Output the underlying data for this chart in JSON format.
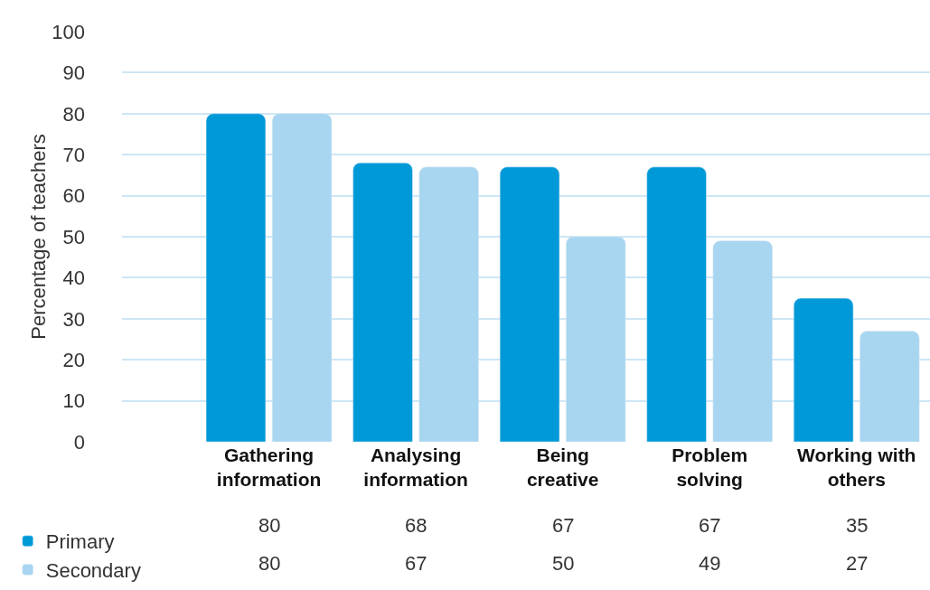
{
  "chart_data": {
    "type": "bar",
    "ylabel": "Percentage of teachers",
    "categories": [
      "Gathering information",
      "Analysing information",
      "Being creative",
      "Problem solving",
      "Working with others"
    ],
    "series": [
      {
        "name": "Primary",
        "color": "#0099d8",
        "values": [
          80,
          68,
          67,
          67,
          35
        ]
      },
      {
        "name": "Secondary",
        "color": "#a8d5ef",
        "values": [
          80,
          67,
          50,
          49,
          27
        ]
      }
    ],
    "ylim": [
      0,
      100
    ],
    "yticks": [
      0,
      10,
      20,
      30,
      40,
      50,
      60,
      70,
      80,
      90,
      100
    ],
    "grid": "y",
    "legend": "bottom left",
    "data_labels": true
  }
}
